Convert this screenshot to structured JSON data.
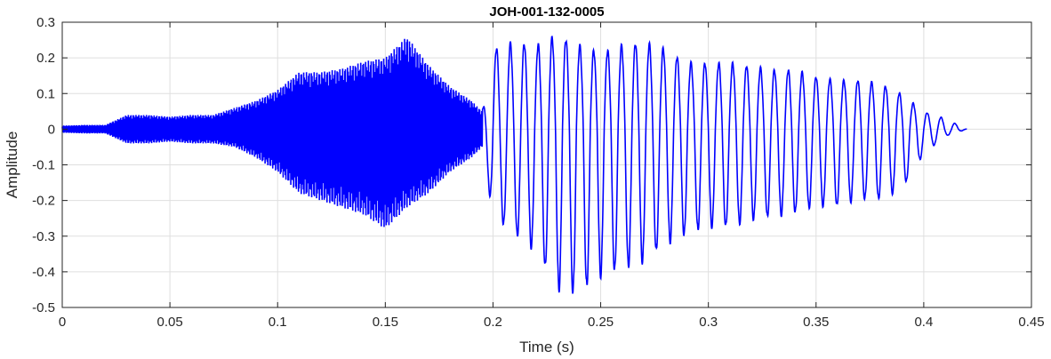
{
  "chart_data": {
    "type": "line",
    "title": "JOH-001-132-0005",
    "xlabel": "Time (s)",
    "ylabel": "Amplitude",
    "xlim": [
      0,
      0.45
    ],
    "ylim": [
      -0.5,
      0.3
    ],
    "grid": true,
    "xticks": [
      0,
      0.05,
      0.1,
      0.15,
      0.2,
      0.25,
      0.3,
      0.35,
      0.4,
      0.45
    ],
    "xtick_labels": [
      "0",
      "0.05",
      "0.1",
      "0.15",
      "0.2",
      "0.25",
      "0.3",
      "0.35",
      "0.4",
      "0.45"
    ],
    "yticks": [
      -0.5,
      -0.4,
      -0.3,
      -0.2,
      -0.1,
      0,
      0.1,
      0.2,
      0.3
    ],
    "ytick_labels": [
      "-0.5",
      "-0.4",
      "-0.3",
      "-0.2",
      "-0.1",
      "0",
      "0.1",
      "0.2",
      "0.3"
    ],
    "series": [
      {
        "color": "#0000ff",
        "x_end": 0.42,
        "envelope": {
          "t": [
            0,
            0.01,
            0.02,
            0.03,
            0.04,
            0.05,
            0.06,
            0.07,
            0.08,
            0.09,
            0.1,
            0.11,
            0.12,
            0.13,
            0.14,
            0.15,
            0.16,
            0.17,
            0.18,
            0.19,
            0.195,
            0.2,
            0.21,
            0.22,
            0.23,
            0.24,
            0.25,
            0.26,
            0.27,
            0.28,
            0.29,
            0.3,
            0.31,
            0.32,
            0.33,
            0.34,
            0.35,
            0.36,
            0.37,
            0.38,
            0.39,
            0.4,
            0.41,
            0.42
          ],
          "max": [
            0.01,
            0.012,
            0.012,
            0.04,
            0.04,
            0.035,
            0.04,
            0.04,
            0.06,
            0.08,
            0.11,
            0.16,
            0.16,
            0.17,
            0.19,
            0.2,
            0.26,
            0.18,
            0.12,
            0.08,
            0.05,
            0.23,
            0.25,
            0.24,
            0.27,
            0.24,
            0.22,
            0.24,
            0.25,
            0.23,
            0.19,
            0.19,
            0.19,
            0.18,
            0.17,
            0.17,
            0.15,
            0.14,
            0.14,
            0.13,
            0.1,
            0.05,
            0.03,
            0.0
          ],
          "min": [
            -0.01,
            -0.012,
            -0.012,
            -0.04,
            -0.04,
            -0.035,
            -0.04,
            -0.04,
            -0.05,
            -0.08,
            -0.12,
            -0.18,
            -0.2,
            -0.22,
            -0.24,
            -0.28,
            -0.22,
            -0.18,
            -0.12,
            -0.08,
            -0.05,
            -0.25,
            -0.3,
            -0.35,
            -0.46,
            -0.47,
            -0.42,
            -0.4,
            -0.38,
            -0.33,
            -0.3,
            -0.28,
            -0.28,
            -0.26,
            -0.25,
            -0.24,
            -0.22,
            -0.22,
            -0.2,
            -0.2,
            -0.17,
            -0.07,
            -0.02,
            0.0
          ]
        }
      }
    ]
  }
}
